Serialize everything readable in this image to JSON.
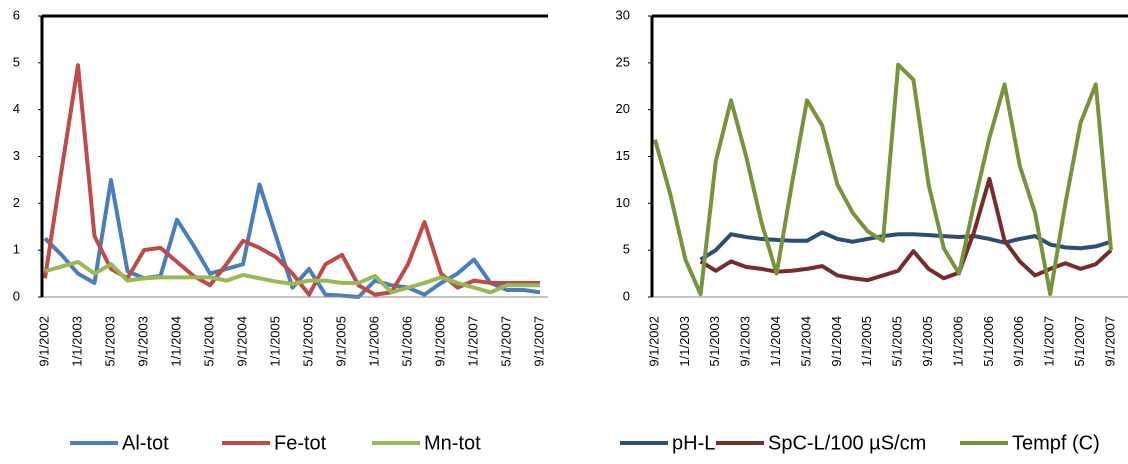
{
  "chart_data": [
    {
      "type": "line",
      "categories": [
        "9/1/2002",
        null,
        "1/1/2003",
        null,
        "5/1/2003",
        null,
        "9/1/2003",
        null,
        "1/1/2004",
        null,
        "5/1/2004",
        null,
        "9/1/2004",
        null,
        "1/1/2005",
        null,
        "5/1/2005",
        null,
        "9/1/2005",
        null,
        "1/1/2006",
        null,
        "5/1/2006",
        null,
        "9/1/2006",
        null,
        "1/1/2007",
        null,
        "5/1/2007",
        null,
        "9/1/2007"
      ],
      "ylim": [
        0,
        6
      ],
      "yticks": [
        0,
        1,
        2,
        3,
        4,
        5,
        6
      ],
      "series": [
        {
          "name": "Al-tot",
          "color": "#4a7ebb",
          "values": [
            1.25,
            0.9,
            0.5,
            0.3,
            2.5,
            0.55,
            0.4,
            0.45,
            1.65,
            1.1,
            0.5,
            0.6,
            0.7,
            2.4,
            1.3,
            0.2,
            0.6,
            0.05,
            0.03,
            0,
            0.35,
            0.25,
            0.2,
            0.05,
            0.3,
            0.5,
            0.8,
            0.3,
            0.15,
            0.15,
            0.1
          ]
        },
        {
          "name": "Fe-tot",
          "color": "#be4b48",
          "values": [
            0.4,
            2.7,
            4.95,
            1.3,
            0.6,
            0.4,
            1.0,
            1.05,
            0.75,
            0.45,
            0.25,
            0.7,
            1.2,
            1.05,
            0.85,
            0.5,
            0.05,
            0.7,
            0.9,
            0.25,
            0.05,
            0.1,
            0.7,
            1.6,
            0.5,
            0.2,
            0.35,
            0.3,
            0.3,
            0.3,
            0.3
          ]
        },
        {
          "name": "Mn-tot",
          "color": "#98b954",
          "values": [
            0.55,
            0.65,
            0.75,
            0.5,
            0.7,
            0.35,
            0.4,
            0.42,
            0.42,
            0.42,
            0.42,
            0.35,
            0.47,
            0.4,
            0.33,
            0.28,
            0.35,
            0.35,
            0.3,
            0.3,
            0.45,
            0.1,
            0.2,
            0.3,
            0.42,
            0.3,
            0.2,
            0.1,
            0.25,
            0.25,
            0.25
          ]
        }
      ]
    },
    {
      "type": "line",
      "categories": [
        "9/1/2002",
        null,
        "1/1/2003",
        null,
        "5/1/2003",
        null,
        "9/1/2003",
        null,
        "1/1/2004",
        null,
        "5/1/2004",
        null,
        "9/1/2004",
        null,
        "1/1/2005",
        null,
        "5/1/2005",
        null,
        "9/1/2005",
        null,
        "1/1/2006",
        null,
        "5/1/2006",
        null,
        "9/1/2006",
        null,
        "1/1/2007",
        null,
        "5/1/2007",
        null,
        "9/1/2007"
      ],
      "ylim": [
        0,
        30
      ],
      "yticks": [
        0,
        5,
        10,
        15,
        20,
        25,
        30
      ],
      "series": [
        {
          "name": "pH-L",
          "color": "#2c4d75",
          "values": [
            null,
            null,
            null,
            4,
            5,
            6.7,
            6.4,
            6.2,
            6.1,
            6,
            6,
            6.9,
            6.2,
            5.9,
            6.2,
            6.5,
            6.7,
            6.7,
            6.6,
            6.5,
            6.4,
            6.5,
            6.2,
            5.8,
            6.2,
            6.5,
            5.6,
            5.3,
            5.2,
            5.4,
            5.9
          ]
        },
        {
          "name": "SpC-L/100 µS/cm",
          "color": "#772c2a",
          "values": [
            null,
            null,
            null,
            3.8,
            2.8,
            3.8,
            3.2,
            3,
            2.7,
            2.8,
            3,
            3.3,
            2.3,
            2,
            1.8,
            2.3,
            2.8,
            4.9,
            3,
            2,
            2.6,
            7,
            12.6,
            6,
            3.8,
            2.3,
            3,
            3.6,
            3,
            3.5,
            5
          ]
        },
        {
          "name": "Tempf (C)",
          "color": "#77933c",
          "values": [
            16.8,
            11,
            4,
            0.3,
            14.5,
            21,
            15,
            8,
            2.5,
            12,
            21,
            18.3,
            12,
            9,
            7,
            6,
            24.8,
            23.2,
            12,
            5.2,
            2.5,
            10,
            17,
            22.7,
            14,
            9,
            0.3,
            10,
            18.6,
            22.7,
            5
          ]
        }
      ]
    }
  ]
}
